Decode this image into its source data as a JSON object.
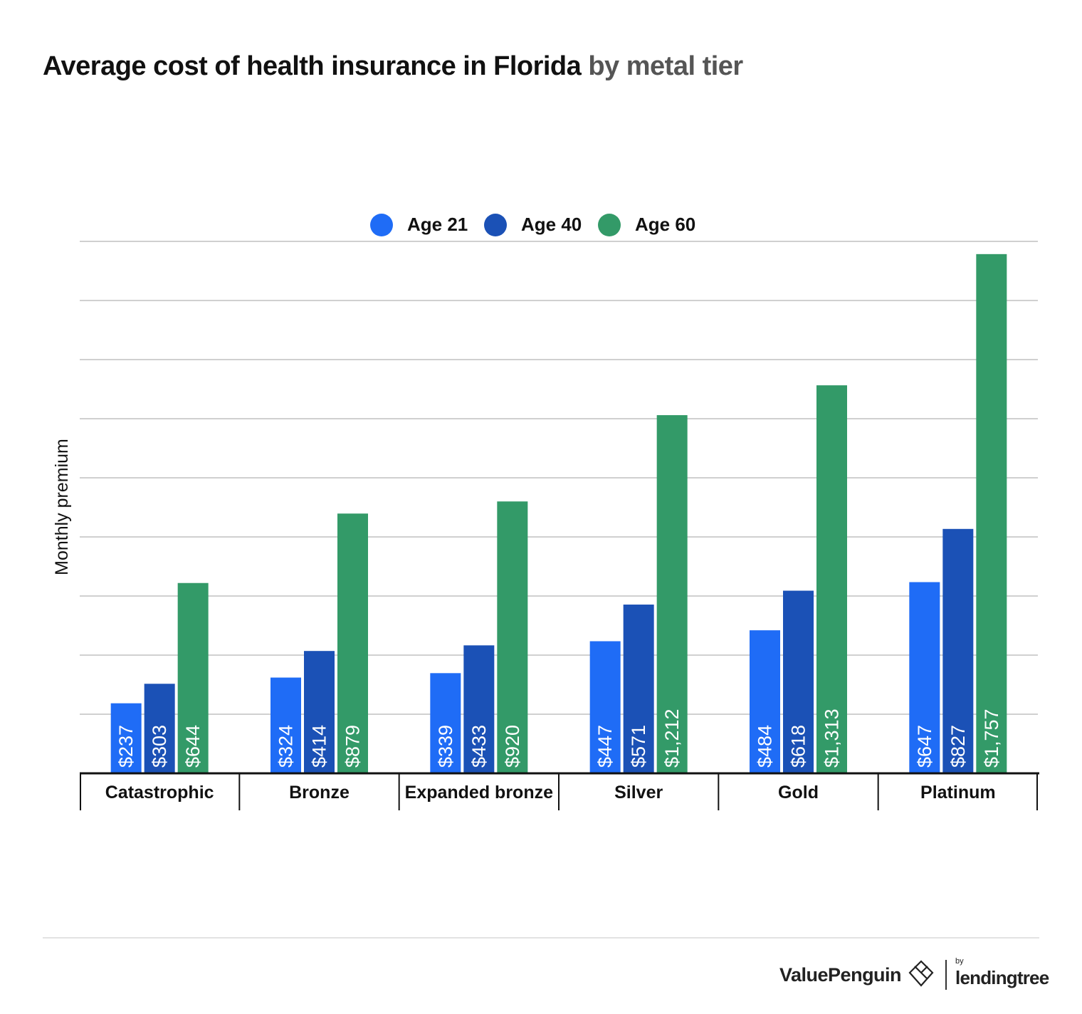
{
  "title": {
    "main": "Average cost of health insurance in Florida",
    "sub": "by metal tier"
  },
  "chart_data": {
    "type": "bar",
    "categories": [
      "Catastrophic",
      "Bronze",
      "Expanded bronze",
      "Silver",
      "Gold",
      "Platinum"
    ],
    "series": [
      {
        "name": "Age 21",
        "color": "#1f6cf6",
        "values": [
          237,
          324,
          339,
          447,
          484,
          647
        ],
        "labels": [
          "$237",
          "$324",
          "$339",
          "$447",
          "$484",
          "$647"
        ]
      },
      {
        "name": "Age 40",
        "color": "#1b51b6",
        "values": [
          303,
          414,
          433,
          571,
          618,
          827
        ],
        "labels": [
          "$303",
          "$414",
          "$433",
          "$571",
          "$618",
          "$827"
        ]
      },
      {
        "name": "Age 60",
        "color": "#339a68",
        "values": [
          644,
          879,
          920,
          1212,
          1313,
          1757
        ],
        "labels": [
          "$644",
          "$879",
          "$920",
          "$1,212",
          "$1,313",
          "$1,757"
        ]
      }
    ],
    "ylabel": "Monthly premium",
    "xlabel": "",
    "ylim": [
      0,
      1800
    ],
    "grid": true,
    "legend": "top-center"
  },
  "branding": {
    "valuepenguin": "ValuePenguin",
    "by": "by",
    "lendingtree": "lendingtree"
  }
}
